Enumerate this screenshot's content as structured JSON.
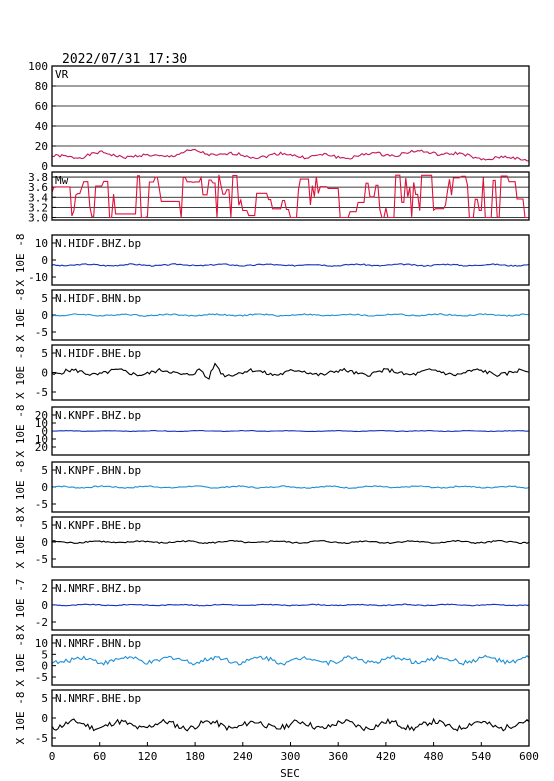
{
  "header": {
    "timestamp": "2022/07/31  17:30"
  },
  "xaxis": {
    "label": "SEC",
    "min": 0,
    "max": 600,
    "ticks": [
      "0",
      "60",
      "120",
      "180",
      "240",
      "300",
      "360",
      "420",
      "480",
      "540",
      "600"
    ]
  },
  "colors": {
    "vr": "#c2185b",
    "mw": "#e0103a",
    "blue": "#1533c0",
    "cyan": "#1f8fd6",
    "black": "#000000",
    "frame": "#000000"
  },
  "chart_data": [
    {
      "type": "line",
      "key": "vr",
      "label": "VR",
      "ylabel": "",
      "ylim": [
        0,
        100
      ],
      "yticks": [
        "100",
        "80",
        "60",
        "40",
        "20",
        "0"
      ],
      "color": "#c2185b",
      "grid": true,
      "waveform": {
        "base": 10,
        "amp": 3,
        "spike": 0,
        "seed": 1
      },
      "series": [
        {
          "x": [
            0,
            60,
            120,
            180,
            240,
            300,
            360,
            420,
            480,
            540,
            600
          ],
          "y": [
            8,
            12,
            9,
            14,
            10,
            11,
            9,
            12,
            14,
            8,
            7
          ]
        }
      ]
    },
    {
      "type": "line",
      "key": "mw",
      "label": "Mw",
      "ylabel": "",
      "ylim": [
        2.95,
        3.9
      ],
      "yticks": [
        "3.8",
        "3.6",
        "3.4",
        "3.2",
        "3.0"
      ],
      "color": "#e0103a",
      "grid": true,
      "waveform": {
        "step": true,
        "seed": 2
      },
      "series": [
        {
          "x": [
            0,
            60,
            120,
            180,
            240,
            300,
            360,
            420,
            480,
            540,
            600
          ],
          "y": [
            3.5,
            3.6,
            3.1,
            3.7,
            3.6,
            3.4,
            3.5,
            3.5,
            3.6,
            3.3,
            3.2
          ]
        }
      ]
    },
    {
      "type": "line",
      "key": "hidf_bhz",
      "label": "N.HIDF.BHZ.bp",
      "ylabel": "X 10E -8",
      "ylim": [
        -10,
        15
      ],
      "yticks": [
        "10",
        "0",
        "-10"
      ],
      "color": "#1533c0",
      "waveform": {
        "base": 0,
        "amp": 0.6,
        "seed": 3
      },
      "series": [
        {
          "x": [
            0,
            600
          ],
          "y": [
            0,
            0
          ]
        }
      ]
    },
    {
      "type": "line",
      "key": "hidf_bhn",
      "label": "N.HIDF.BHN.bp",
      "ylabel": "X 10E -8",
      "ylim": [
        -10,
        10
      ],
      "yticks": [
        "5",
        "0",
        "-5"
      ],
      "color": "#1f8fd6",
      "waveform": {
        "base": 0,
        "amp": 0.5,
        "seed": 4
      },
      "series": [
        {
          "x": [
            0,
            600
          ],
          "y": [
            0,
            0
          ]
        }
      ]
    },
    {
      "type": "line",
      "key": "hidf_bhe",
      "label": "N.HIDF.BHE.bp",
      "ylabel": "X 10E -8",
      "ylim": [
        -10,
        10
      ],
      "yticks": [
        "5",
        "0",
        "-5"
      ],
      "color": "#000000",
      "waveform": {
        "base": 0,
        "amp": 1.4,
        "seed": 5,
        "bump": [
          200,
          3.5
        ]
      },
      "series": [
        {
          "x": [
            0,
            600
          ],
          "y": [
            0,
            0
          ]
        }
      ]
    },
    {
      "type": "line",
      "key": "knpf_bhz",
      "label": "N.KNPF.BHZ.bp",
      "ylabel": "X 10E -8",
      "ylim": [
        -20,
        20
      ],
      "yticks": [
        "20",
        "10",
        "0",
        "10",
        "20"
      ],
      "color": "#1533c0",
      "waveform": {
        "base": 0,
        "amp": 0.4,
        "seed": 6
      },
      "series": [
        {
          "x": [
            0,
            600
          ],
          "y": [
            0,
            0
          ]
        }
      ]
    },
    {
      "type": "line",
      "key": "knpf_bhn",
      "label": "N.KNPF.BHN.bp",
      "ylabel": "X 10E -8",
      "ylim": [
        -10,
        10
      ],
      "yticks": [
        "5",
        "0",
        "-5"
      ],
      "color": "#1f8fd6",
      "waveform": {
        "base": 0,
        "amp": 0.5,
        "seed": 7
      },
      "series": [
        {
          "x": [
            0,
            600
          ],
          "y": [
            0,
            0
          ]
        }
      ]
    },
    {
      "type": "line",
      "key": "knpf_bhe",
      "label": "N.KNPF.BHE.bp",
      "ylabel": "X 10E -8",
      "ylim": [
        -10,
        10
      ],
      "yticks": [
        "5",
        "0",
        "-5"
      ],
      "color": "#000000",
      "waveform": {
        "base": 0,
        "amp": 0.6,
        "seed": 8
      },
      "series": [
        {
          "x": [
            0,
            600
          ],
          "y": [
            0,
            0
          ]
        }
      ]
    },
    {
      "type": "line",
      "key": "nmrf_bhz",
      "label": "N.NMRF.BHZ.bp",
      "ylabel": "X 10E -7",
      "ylim": [
        -3,
        3
      ],
      "yticks": [
        "2",
        "0",
        "-2"
      ],
      "color": "#1533c0",
      "waveform": {
        "base": 0,
        "amp": 0.1,
        "seed": 9
      },
      "series": [
        {
          "x": [
            0,
            600
          ],
          "y": [
            0,
            0
          ]
        }
      ]
    },
    {
      "type": "line",
      "key": "nmrf_bhn",
      "label": "N.NMRF.BHN.bp",
      "ylabel": "X 10E -8",
      "ylim": [
        -10,
        10
      ],
      "yticks": [
        "10",
        "5",
        "0",
        "-5"
      ],
      "color": "#1f8fd6",
      "waveform": {
        "base": 0,
        "amp": 1.8,
        "seed": 10
      },
      "series": [
        {
          "x": [
            0,
            600
          ],
          "y": [
            0,
            0
          ]
        }
      ]
    },
    {
      "type": "line",
      "key": "nmrf_bhe",
      "label": "N.NMRF.BHE.bp",
      "ylabel": "X 10E -8",
      "ylim": [
        -6,
        10
      ],
      "yticks": [
        "5",
        "0",
        "-5"
      ],
      "color": "#000000",
      "waveform": {
        "base": 0,
        "amp": 1.6,
        "seed": 11
      },
      "series": [
        {
          "x": [
            0,
            600
          ],
          "y": [
            0,
            0
          ]
        }
      ]
    }
  ]
}
